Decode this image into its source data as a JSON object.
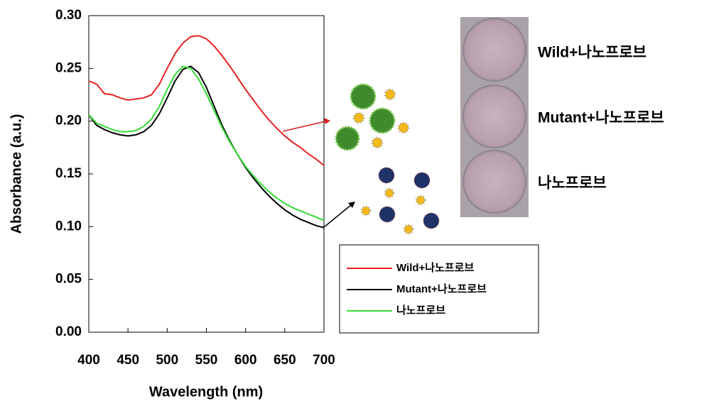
{
  "chart_data": {
    "type": "line",
    "x_label": "Wavelength (nm)",
    "y_label": "Absorbance (a.u.)",
    "x": [
      400,
      410,
      420,
      430,
      440,
      450,
      460,
      470,
      480,
      490,
      500,
      510,
      520,
      530,
      540,
      550,
      560,
      570,
      580,
      590,
      600,
      610,
      620,
      630,
      640,
      650,
      660,
      670,
      680,
      690,
      700
    ],
    "series": [
      {
        "name": "Wild+나노프로브",
        "color": "#e82020",
        "values": [
          0.238,
          0.235,
          0.226,
          0.225,
          0.222,
          0.22,
          0.221,
          0.222,
          0.225,
          0.235,
          0.25,
          0.264,
          0.274,
          0.28,
          0.281,
          0.278,
          0.271,
          0.262,
          0.252,
          0.241,
          0.23,
          0.22,
          0.21,
          0.201,
          0.193,
          0.186,
          0.18,
          0.175,
          0.169,
          0.164,
          0.158
        ]
      },
      {
        "name": "Mutant+나노프로브",
        "color": "#000000",
        "values": [
          0.206,
          0.196,
          0.192,
          0.189,
          0.187,
          0.186,
          0.187,
          0.19,
          0.196,
          0.207,
          0.222,
          0.238,
          0.249,
          0.252,
          0.246,
          0.232,
          0.214,
          0.196,
          0.181,
          0.168,
          0.156,
          0.146,
          0.137,
          0.129,
          0.122,
          0.116,
          0.111,
          0.107,
          0.104,
          0.101,
          0.099
        ]
      },
      {
        "name": "나노프로브",
        "color": "#33dd33",
        "values": [
          0.206,
          0.198,
          0.195,
          0.192,
          0.19,
          0.19,
          0.191,
          0.195,
          0.202,
          0.214,
          0.23,
          0.244,
          0.252,
          0.25,
          0.24,
          0.226,
          0.21,
          0.194,
          0.18,
          0.168,
          0.157,
          0.148,
          0.14,
          0.133,
          0.127,
          0.122,
          0.118,
          0.115,
          0.112,
          0.109,
          0.106
        ]
      }
    ],
    "xlim": [
      400,
      700
    ],
    "xticks": [
      400,
      450,
      500,
      550,
      600,
      650,
      700
    ],
    "ylim": [
      0,
      0.3
    ],
    "yticks": [
      {
        "value": 0,
        "label": "0.00"
      },
      {
        "value": 0.05,
        "label": "0.05"
      },
      {
        "value": 0.1,
        "label": "0.10"
      },
      {
        "value": 0.15,
        "label": "0.15"
      },
      {
        "value": 0.2,
        "label": "0.20"
      },
      {
        "value": 0.25,
        "label": "0.25"
      },
      {
        "value": 0.3,
        "label": "0.30"
      }
    ],
    "photo_labels": [
      "Wild+나노프로브",
      "Mutant+나노프로브",
      "나노프로브"
    ]
  }
}
